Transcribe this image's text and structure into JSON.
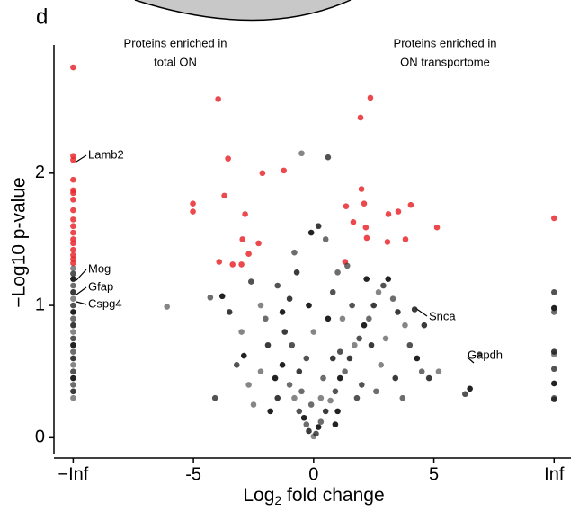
{
  "chart_data": {
    "type": "scatter",
    "panel_label": "d",
    "y_label": "−Log10 p-value",
    "x_label": "Log",
    "x_label_sub": "2",
    "x_label_rest": " fold change",
    "xlim": [
      -10.8,
      10.7
    ],
    "ylim": [
      -0.12,
      2.97
    ],
    "xticks": [
      {
        "value": -10,
        "label": "−Inf"
      },
      -5,
      0,
      5,
      {
        "value": 10,
        "label": "Inf"
      }
    ],
    "yticks": [
      0,
      1,
      2
    ],
    "annotations": [
      "Proteins enriched in",
      "total ON",
      "Proteins enriched in",
      "ON transportome",
      "Lamb2",
      "Mog",
      "Gfap",
      "Cspg4",
      "Snca",
      "Gapdh"
    ],
    "series": [
      {
        "color": "#e8292e",
        "x": [
          -10,
          -10,
          -10,
          -10,
          -10,
          -10,
          -10,
          -10,
          -10,
          -10,
          -10,
          -10,
          -10,
          -10,
          -10,
          -10,
          -10,
          -3.97,
          2.36,
          1.95,
          -3.56,
          -2.13,
          -1.24,
          -3.71,
          1.99,
          -5.02,
          -5.02,
          -2.85,
          1.35,
          2.1,
          4.04,
          3.52,
          3.11,
          1.65,
          2.17,
          5.13,
          10,
          -2.96,
          -2.29,
          2.21,
          3.07,
          3.82,
          -3.93,
          -3.37,
          -3.0,
          1.31,
          -2.7
        ],
        "values": [
          2.8,
          2.13,
          2.1,
          1.95,
          1.87,
          1.85,
          1.8,
          1.72,
          1.65,
          1.6,
          1.55,
          1.5,
          1.47,
          1.42,
          1.38,
          1.35,
          1.32,
          2.56,
          2.57,
          2.42,
          2.11,
          2.0,
          2.02,
          1.83,
          1.88,
          1.77,
          1.71,
          1.69,
          1.75,
          1.77,
          1.76,
          1.71,
          1.69,
          1.63,
          1.59,
          1.59,
          1.66,
          1.5,
          1.47,
          1.51,
          1.48,
          1.5,
          1.33,
          1.31,
          1.31,
          1.33,
          1.39
        ]
      },
      {
        "color": "#222222",
        "x": [
          -10,
          -10,
          -10,
          -10,
          -10,
          -10,
          -10,
          -10,
          -10,
          -10,
          -10,
          -10,
          -10,
          -10,
          -10,
          -10,
          -10,
          -10,
          -10,
          -10,
          -10,
          10,
          10,
          10,
          10,
          10,
          10,
          10,
          10,
          10,
          -6.1,
          -4.1,
          -3.8,
          -4.3,
          -3.5,
          -3.0,
          -2.6,
          -2.9,
          -2.0,
          -1.9,
          -2.2,
          -1.5,
          -1.3,
          -1.0,
          -1.2,
          -0.8,
          -0.6,
          -0.4,
          -0.3,
          -0.2,
          0,
          0.1,
          0.2,
          0.3,
          0.5,
          0.7,
          0.9,
          1.1,
          1.3,
          1.5,
          1.7,
          1.9,
          2.1,
          2.3,
          2.5,
          2.7,
          2.9,
          3.1,
          3.3,
          3.5,
          3.8,
          4.0,
          4.3,
          4.5,
          4.8,
          5.2,
          6.3,
          6.5,
          6.9,
          4.2,
          3.0,
          2.0,
          1.0,
          -0.5,
          -1.5,
          -2.5,
          -3.2,
          -1.8,
          0.4,
          0.8,
          1.2,
          1.6,
          2.2,
          -0.8,
          0.2,
          -0.5,
          0.6,
          -0.1,
          0.5,
          -0.7,
          0,
          -0.3,
          0.6,
          1.4,
          -1.0,
          -2.2,
          -0.9,
          -1.6,
          2.6,
          3.4,
          2.8,
          1.8,
          0.9,
          -0.1,
          -0.6,
          0.3,
          1.1,
          -1.3,
          3.7,
          4.6,
          -2.7,
          0.8,
          -0.2,
          1.0,
          2.4
        ],
        "values": [
          1.28,
          1.24,
          1.2,
          1.15,
          1.1,
          1.05,
          1.0,
          0.95,
          0.9,
          0.85,
          0.8,
          0.75,
          0.7,
          0.65,
          0.6,
          0.55,
          0.5,
          0.45,
          0.4,
          0.35,
          0.3,
          1.1,
          0.98,
          0.95,
          0.65,
          0.63,
          0.52,
          0.41,
          0.3,
          0.29,
          0.99,
          0.3,
          1.07,
          1.06,
          0.95,
          0.8,
          1.18,
          0.62,
          0.9,
          0.7,
          0.5,
          1.15,
          0.55,
          0.4,
          0.8,
          0.3,
          0.2,
          0.15,
          0.1,
          0.05,
          0.01,
          0.03,
          0.08,
          0.12,
          0.2,
          0.28,
          0.35,
          0.45,
          0.5,
          0.6,
          0.7,
          0.75,
          0.85,
          0.9,
          1.0,
          1.1,
          1.15,
          1.2,
          1.05,
          0.95,
          0.85,
          0.7,
          0.6,
          0.5,
          0.45,
          0.5,
          0.33,
          0.37,
          0.63,
          0.97,
          0.75,
          0.4,
          0.2,
          0.35,
          0.3,
          0.25,
          0.55,
          0.2,
          0.45,
          0.6,
          0.9,
          1.0,
          1.2,
          1.4,
          1.6,
          2.15,
          2.12,
          1.55,
          1.5,
          1.25,
          0.8,
          0.6,
          0.9,
          1.3,
          1.05,
          1.0,
          0.7,
          0.45,
          0.35,
          0.45,
          0.55,
          0.3,
          0.1,
          0.25,
          0.5,
          0.3,
          0.65,
          0.95,
          0.3,
          0.85,
          0.4,
          1.1,
          1.0,
          1.25,
          0.7
        ]
      }
    ]
  }
}
